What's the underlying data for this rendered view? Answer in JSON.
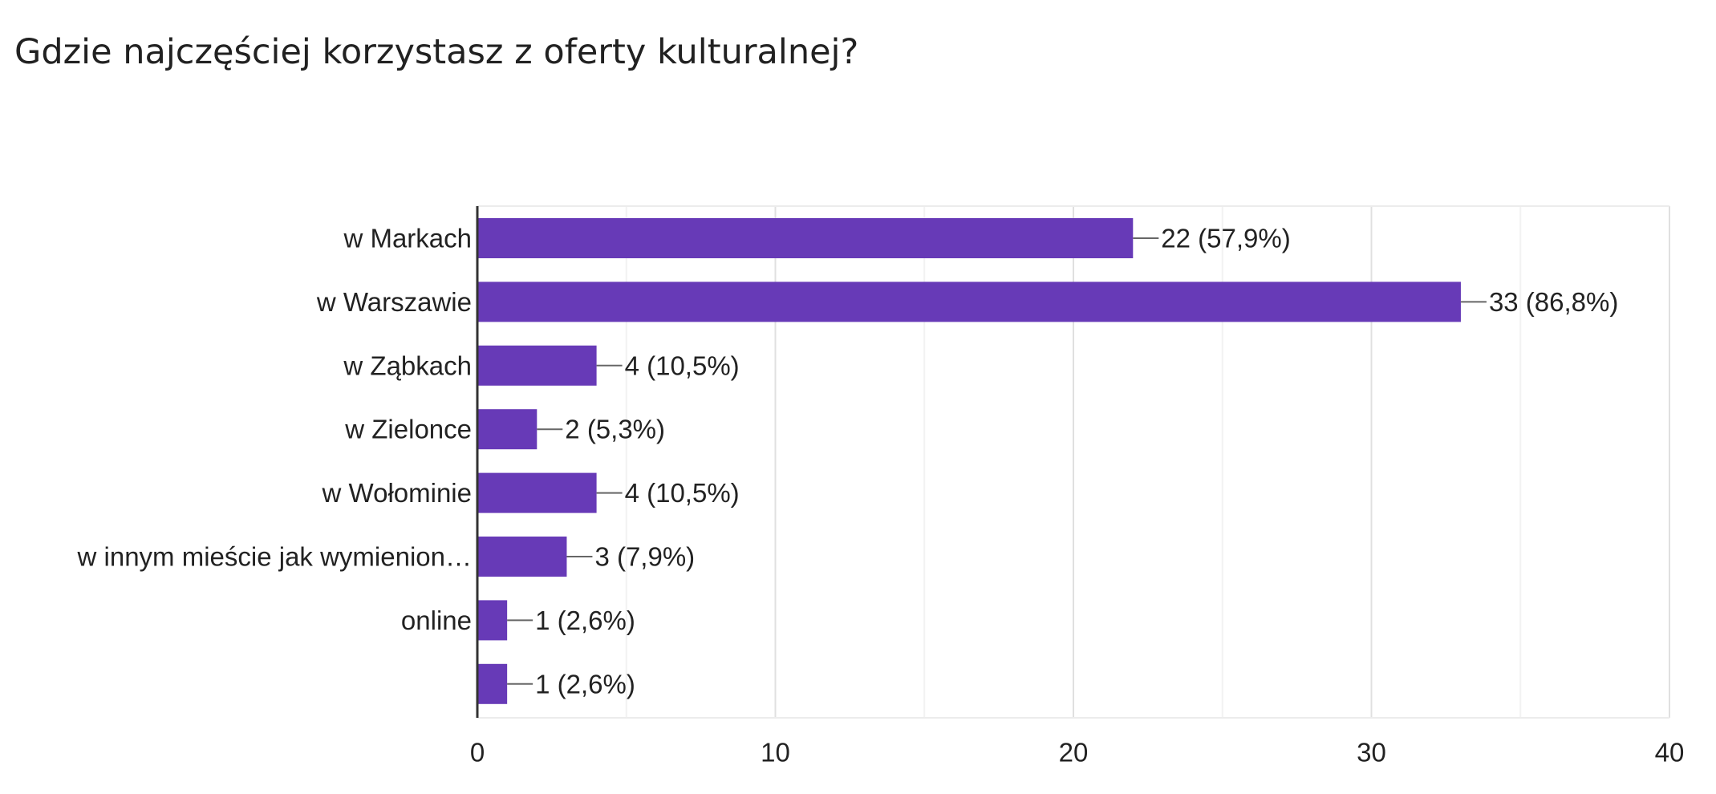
{
  "chart_data": {
    "type": "bar",
    "orientation": "horizontal",
    "title": "Gdzie najczęściej korzystasz z oferty kulturalnej?",
    "categories": [
      "w Markach",
      "w Warszawie",
      "w Ząbkach",
      "w Zielonce",
      "w Wołominie",
      "w innym mieście jak wymienion…",
      "online",
      ""
    ],
    "values": [
      22,
      33,
      4,
      2,
      4,
      3,
      1,
      1
    ],
    "value_labels": [
      "22 (57,9%)",
      "33 (86,8%)",
      "4 (10,5%)",
      "2 (5,3%)",
      "4 (10,5%)",
      "3 (7,9%)",
      "1 (2,6%)",
      "1 (2,6%)"
    ],
    "xlim": [
      0,
      40
    ],
    "xticks": [
      0,
      10,
      20,
      30,
      40
    ],
    "grid": true,
    "bar_color": "#673ab7"
  }
}
